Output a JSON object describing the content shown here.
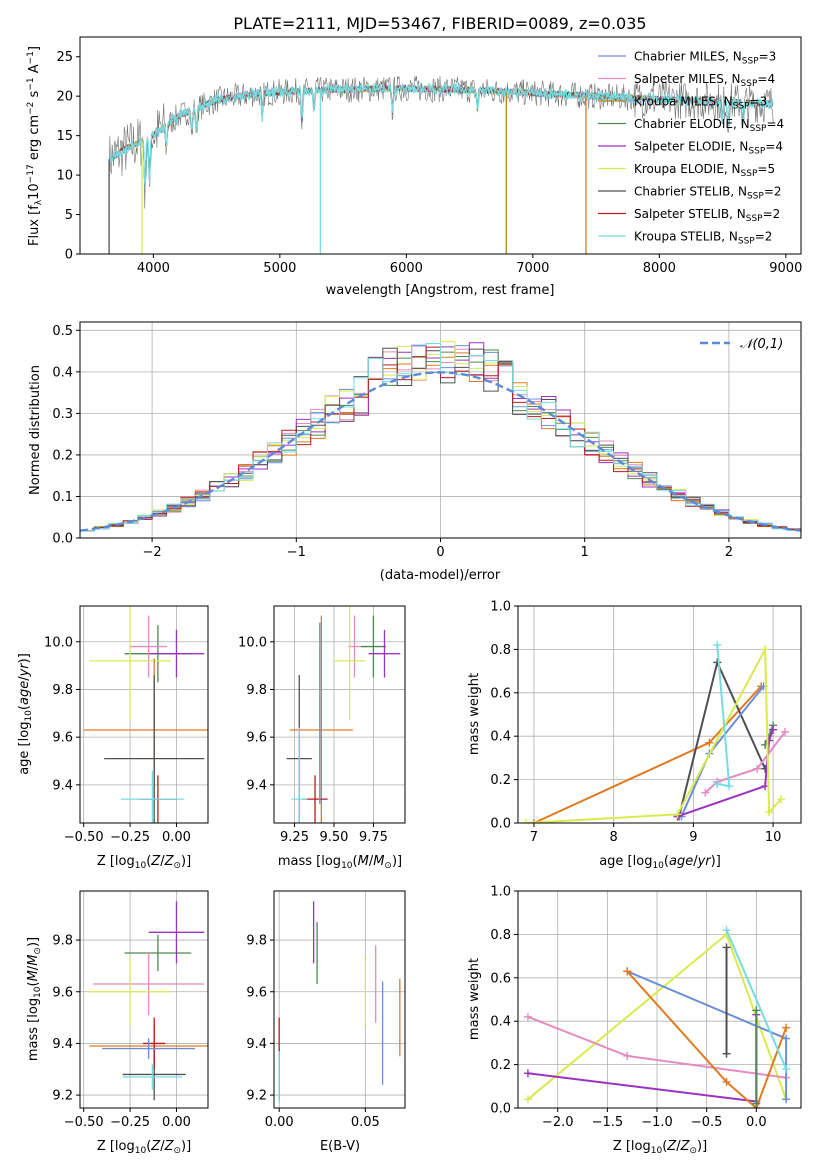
{
  "figure": {
    "title": "PLATE=2111, MJD=53467, FIBERID=0089, z=0.035"
  },
  "colors": {
    "Chabrier MILES": "#6a8fd8",
    "Salpeter MILES": "#e58bbd",
    "Kroupa MILES": "#b8861b",
    "Chabrier ELODIE": "#4e8a52",
    "Salpeter ELODIE": "#9b33c0",
    "Kroupa ELODIE": "#d8ea4e",
    "Chabrier STELIB": "#505050",
    "Salpeter STELIB": "#b81c1c",
    "Kroupa STELIB": "#77dbe3",
    "orange": "#e07a21",
    "gaussian": "#5b8bd8",
    "grid": "#b0b0b0"
  },
  "chart_data": [
    {
      "id": "spectrum",
      "type": "line",
      "title": "PLATE=2111, MJD=53467, FIBERID=0089, z=0.035",
      "xlabel": "wavelength [Angstrom, rest frame]",
      "ylabel_parts": [
        "Flux [f",
        "λ",
        "10",
        "−17",
        " erg cm",
        "−2",
        " s",
        "−1",
        " A",
        "−1",
        "]"
      ],
      "xlim": [
        3420,
        9120
      ],
      "ylim": [
        0,
        27.5
      ],
      "xticks": [
        4000,
        5000,
        6000,
        7000,
        8000,
        9000
      ],
      "yticks": [
        0,
        5,
        10,
        15,
        20,
        25
      ],
      "legend_position": "upper-right",
      "series": [
        {
          "name": "Chabrier MILES, N_SSP=3",
          "label_main": "Chabrier MILES, N",
          "label_sub": "SSP",
          "label_end": "=3",
          "color": "#6a8fd8"
        },
        {
          "name": "Salpeter MILES, N_SSP=4",
          "label_main": "Salpeter MILES, N",
          "label_sub": "SSP",
          "label_end": "=4",
          "color": "#e58bbd"
        },
        {
          "name": "Kroupa MILES, N_SSP=3",
          "label_main": "Kroupa MILES, N",
          "label_sub": "SSP",
          "label_end": "=3",
          "color": "#b8861b"
        },
        {
          "name": "Chabrier ELODIE, N_SSP=4",
          "label_main": "Chabrier ELODIE, N",
          "label_sub": "SSP",
          "label_end": "=4",
          "color": "#4e8a52"
        },
        {
          "name": "Salpeter ELODIE, N_SSP=4",
          "label_main": "Salpeter ELODIE, N",
          "label_sub": "SSP",
          "label_end": "=4",
          "color": "#9b33c0"
        },
        {
          "name": "Kroupa ELODIE, N_SSP=5",
          "label_main": "Kroupa ELODIE, N",
          "label_sub": "SSP",
          "label_end": "=5",
          "color": "#d8ea4e"
        },
        {
          "name": "Chabrier STELIB, N_SSP=2",
          "label_main": "Chabrier STELIB, N",
          "label_sub": "SSP",
          "label_end": "=2",
          "color": "#505050"
        },
        {
          "name": "Salpeter STELIB, N_SSP=2",
          "label_main": "Salpeter STELIB, N",
          "label_sub": "SSP",
          "label_end": "=2",
          "color": "#b81c1c"
        },
        {
          "name": "Kroupa STELIB, N_SSP=2",
          "label_main": "Kroupa STELIB, N",
          "label_sub": "SSP",
          "label_end": "=2",
          "color": "#77dbe3"
        }
      ],
      "continuum_knots": [
        [
          3650,
          12
        ],
        [
          3800,
          13.5
        ],
        [
          4000,
          15
        ],
        [
          4200,
          17.5
        ],
        [
          4500,
          19.5
        ],
        [
          4800,
          20.3
        ],
        [
          5100,
          20.6
        ],
        [
          5400,
          20.8
        ],
        [
          6000,
          21
        ],
        [
          6500,
          20.8
        ],
        [
          7000,
          20.4
        ],
        [
          7500,
          20
        ],
        [
          8000,
          19.6
        ],
        [
          8500,
          19.3
        ],
        [
          8900,
          19
        ]
      ],
      "absorption_lines": [
        [
          3934,
          7
        ],
        [
          3969,
          6
        ],
        [
          4102,
          3
        ],
        [
          4304,
          3
        ],
        [
          4340,
          3
        ],
        [
          4861,
          3
        ],
        [
          5175,
          4
        ],
        [
          5270,
          2.5
        ],
        [
          5890,
          3
        ],
        [
          6563,
          2.5
        ],
        [
          8498,
          2.5
        ],
        [
          8542,
          3
        ],
        [
          8662,
          3
        ]
      ],
      "drops": [
        {
          "x": 3910,
          "color": "#d8ea4e"
        },
        {
          "x": 5320,
          "color": "#77dbe3"
        },
        {
          "x": 6790,
          "color": "#b8861b"
        },
        {
          "x": 7420,
          "color": "#e07a21"
        },
        {
          "x": 3650,
          "color": "#505050"
        }
      ]
    },
    {
      "id": "residuals",
      "type": "histogram",
      "xlabel": "(data-model)/error",
      "ylabel": "Normed distribution",
      "xlim": [
        -2.5,
        2.5
      ],
      "ylim": [
        0,
        0.52
      ],
      "xticks": [
        -2,
        -1,
        0,
        1,
        2
      ],
      "xtick_labels": [
        "−2",
        "−1",
        "0",
        "1",
        "2"
      ],
      "yticks": [
        0,
        0.1,
        0.2,
        0.3,
        0.4,
        0.5
      ],
      "ytick_labels": [
        "0.0",
        "0.1",
        "0.2",
        "0.3",
        "0.4",
        "0.5"
      ],
      "bin_width": 0.1,
      "legend_position": "upper-right",
      "gaussian": {
        "label": "𝒩(0,1)",
        "mean": 0,
        "sigma": 1,
        "color": "#5b8bd8"
      },
      "series_colors": [
        "#6a8fd8",
        "#e58bbd",
        "#e07a21",
        "#4e8a52",
        "#9b33c0",
        "#d8ea4e",
        "#505050",
        "#b81c1c",
        "#77dbe3"
      ]
    },
    {
      "id": "age-vs-Z",
      "type": "scatter-errorbar",
      "xlabel_main": "Z [log",
      "xlabel_sub": "10",
      "xlabel_end": "(Z/Z",
      "xlabel_full": "Z [log10(Z/Z☉)]",
      "ylabel_full": "age  [log10(age/yr)]",
      "xlim": [
        -0.52,
        0.17
      ],
      "ylim": [
        9.24,
        10.15
      ],
      "xticks": [
        -0.5,
        -0.25,
        0.0
      ],
      "xtick_labels": [
        "−0.50",
        "−0.25",
        "0.00"
      ],
      "yticks": [
        9.4,
        9.6,
        9.8,
        10.0
      ],
      "ytick_labels": [
        "9.4",
        "9.6",
        "9.8",
        "10.0"
      ],
      "points": [
        {
          "x": -0.1,
          "y": 9.95,
          "xerr": 0.18,
          "yerr": 0.12,
          "color": "#4e8a52"
        },
        {
          "x": 0.0,
          "y": 9.95,
          "xerr": 0.15,
          "yerr": 0.1,
          "color": "#9b33c0"
        },
        {
          "x": -0.15,
          "y": 9.98,
          "xerr": 0.1,
          "yerr": 0.13,
          "color": "#e58bbd"
        },
        {
          "x": -0.25,
          "y": 9.92,
          "xerr": 0.22,
          "yerr": 0.25,
          "color": "#d8ea4e"
        },
        {
          "x": -0.12,
          "y": 9.63,
          "xerr": 0.38,
          "yerr": 0.3,
          "color": "#e07a21"
        },
        {
          "x": -0.12,
          "y": 9.51,
          "xerr": 0.27,
          "yerr": 0.35,
          "color": "#505050"
        },
        {
          "x": -0.1,
          "y": 9.34,
          "xerr": 0.1,
          "yerr": 0.1,
          "color": "#b81c1c"
        },
        {
          "x": -0.13,
          "y": 9.34,
          "xerr": 0.17,
          "yerr": 0.12,
          "color": "#77dbe3"
        }
      ]
    },
    {
      "id": "age-vs-mass",
      "type": "scatter-errorbar",
      "xlabel_full": "mass [log10(M/M☉)]",
      "xlim": [
        9.12,
        9.95
      ],
      "ylim": [
        9.24,
        10.15
      ],
      "xticks": [
        9.25,
        9.5,
        9.75
      ],
      "xtick_labels": [
        "9.25",
        "9.50",
        "9.75"
      ],
      "yticks": [
        9.4,
        9.6,
        9.8,
        10.0
      ],
      "ytick_labels": [
        "9.4",
        "9.6",
        "9.8",
        "10.0"
      ],
      "points": [
        {
          "x": 9.75,
          "y": 9.98,
          "xerr": 0.08,
          "yerr": 0.13,
          "color": "#4e8a52"
        },
        {
          "x": 9.82,
          "y": 9.95,
          "xerr": 0.1,
          "yerr": 0.1,
          "color": "#9b33c0"
        },
        {
          "x": 9.63,
          "y": 9.98,
          "xerr": 0.04,
          "yerr": 0.13,
          "color": "#e58bbd"
        },
        {
          "x": 9.6,
          "y": 9.92,
          "xerr": 0.1,
          "yerr": 0.25,
          "color": "#d8ea4e"
        },
        {
          "x": 9.42,
          "y": 9.63,
          "xerr": 0.2,
          "yerr": 0.48,
          "color": "#e07a21"
        },
        {
          "x": 9.28,
          "y": 9.51,
          "xerr": 0.08,
          "yerr": 0.35,
          "color": "#505050"
        },
        {
          "x": 9.38,
          "y": 9.34,
          "xerr": 0.08,
          "yerr": 0.1,
          "color": "#b81c1c"
        },
        {
          "x": 9.28,
          "y": 9.34,
          "xerr": 0.05,
          "yerr": 0.3,
          "color": "#77dbe3"
        },
        {
          "x": 9.41,
          "y": 9.7,
          "xerr": 0.0,
          "yerr": 0.38,
          "color": "#6a8fd8"
        }
      ]
    },
    {
      "id": "weight-vs-age",
      "type": "line",
      "xlabel_full": "age  [log10(age/yr)]",
      "ylabel": "mass weight",
      "xlim": [
        6.8,
        10.35
      ],
      "ylim": [
        0,
        1.0
      ],
      "xticks": [
        7,
        8,
        9,
        10
      ],
      "xtick_labels": [
        "7",
        "8",
        "9",
        "10"
      ],
      "yticks": [
        0,
        0.2,
        0.4,
        0.6,
        0.8,
        1.0
      ],
      "ytick_labels": [
        "0.0",
        "0.2",
        "0.4",
        "0.6",
        "0.8",
        "1.0"
      ],
      "series": [
        {
          "color": "#e07a21",
          "points": [
            [
              7.0,
              0.0
            ],
            [
              9.2,
              0.37
            ],
            [
              9.85,
              0.63
            ]
          ]
        },
        {
          "color": "#505050",
          "points": [
            [
              8.82,
              0.03
            ],
            [
              9.3,
              0.74
            ],
            [
              9.9,
              0.25
            ]
          ]
        },
        {
          "color": "#6a8fd8",
          "points": [
            [
              8.85,
              0.03
            ],
            [
              9.2,
              0.32
            ],
            [
              9.88,
              0.63
            ]
          ]
        },
        {
          "color": "#e58bbd",
          "points": [
            [
              9.15,
              0.14
            ],
            [
              9.3,
              0.19
            ],
            [
              9.8,
              0.25
            ],
            [
              10.15,
              0.42
            ]
          ]
        },
        {
          "color": "#4e8a52",
          "points": [
            [
              9.9,
              0.36
            ],
            [
              10.0,
              0.45
            ]
          ]
        },
        {
          "color": "#9b33c0",
          "points": [
            [
              8.8,
              0.03
            ],
            [
              9.9,
              0.17
            ],
            [
              9.95,
              0.38
            ],
            [
              10.0,
              0.43
            ]
          ]
        },
        {
          "color": "#d8ea4e",
          "points": [
            [
              6.9,
              0.0
            ],
            [
              8.8,
              0.04
            ],
            [
              9.9,
              0.8
            ],
            [
              9.95,
              0.05
            ],
            [
              10.1,
              0.11
            ]
          ]
        },
        {
          "color": "#77dbe3",
          "points": [
            [
              9.3,
              0.82
            ],
            [
              9.45,
              0.17
            ],
            [
              9.3,
              0.18
            ]
          ]
        }
      ]
    },
    {
      "id": "mass-vs-Z",
      "type": "scatter-errorbar",
      "xlabel_full": "Z [log10(Z/Z☉)]",
      "ylabel_full": "mass [log10(M/M☉)]",
      "xlim": [
        -0.52,
        0.17
      ],
      "ylim": [
        9.15,
        9.99
      ],
      "xticks": [
        -0.5,
        -0.25,
        0.0
      ],
      "xtick_labels": [
        "−0.50",
        "−0.25",
        "0.00"
      ],
      "yticks": [
        9.2,
        9.4,
        9.6,
        9.8
      ],
      "ytick_labels": [
        "9.2",
        "9.4",
        "9.6",
        "9.8"
      ],
      "points": [
        {
          "x": -0.1,
          "y": 9.75,
          "xerr": 0.18,
          "yerr": 0.07,
          "color": "#4e8a52"
        },
        {
          "x": 0.0,
          "y": 9.83,
          "xerr": 0.15,
          "yerr": 0.12,
          "color": "#9b33c0"
        },
        {
          "x": -0.15,
          "y": 9.63,
          "xerr": 0.3,
          "yerr": 0.12,
          "color": "#e58bbd"
        },
        {
          "x": -0.25,
          "y": 9.6,
          "xerr": 0.22,
          "yerr": 0.13,
          "color": "#d8ea4e"
        },
        {
          "x": -0.12,
          "y": 9.39,
          "xerr": 0.35,
          "yerr": 0.08,
          "color": "#e07a21"
        },
        {
          "x": -0.12,
          "y": 9.28,
          "xerr": 0.17,
          "yerr": 0.1,
          "color": "#505050"
        },
        {
          "x": -0.12,
          "y": 9.4,
          "xerr": 0.06,
          "yerr": 0.1,
          "color": "#b81c1c"
        },
        {
          "x": -0.13,
          "y": 9.27,
          "xerr": 0.16,
          "yerr": 0.05,
          "color": "#77dbe3"
        },
        {
          "x": -0.15,
          "y": 9.38,
          "xerr": 0.25,
          "yerr": 0.04,
          "color": "#6a8fd8"
        }
      ]
    },
    {
      "id": "mass-vs-EBV",
      "type": "scatter-errorbar",
      "xlabel": "E(B-V)",
      "xlim": [
        -0.003,
        0.073
      ],
      "ylim": [
        9.15,
        9.99
      ],
      "xticks": [
        0.0,
        0.05
      ],
      "xtick_labels": [
        "0.00",
        "0.05"
      ],
      "yticks": [
        9.2,
        9.4,
        9.6,
        9.8
      ],
      "ytick_labels": [
        "9.2",
        "9.4",
        "9.6",
        "9.8"
      ],
      "points": [
        {
          "x": 0.02,
          "y": 9.83,
          "xerr": 0,
          "yerr": 0.12,
          "color": "#9b33c0"
        },
        {
          "x": 0.022,
          "y": 9.75,
          "xerr": 0,
          "yerr": 0.12,
          "color": "#4e8a52"
        },
        {
          "x": 0.05,
          "y": 9.6,
          "xerr": 0,
          "yerr": 0.13,
          "color": "#d8ea4e"
        },
        {
          "x": 0.056,
          "y": 9.63,
          "xerr": 0,
          "yerr": 0.15,
          "color": "#e58bbd"
        },
        {
          "x": 0.06,
          "y": 9.44,
          "xerr": 0,
          "yerr": 0.2,
          "color": "#6a8fd8"
        },
        {
          "x": 0.07,
          "y": 9.5,
          "xerr": 0,
          "yerr": 0.15,
          "color": "#e07a21"
        },
        {
          "x": 0.0,
          "y": 9.4,
          "xerr": 0,
          "yerr": 0.1,
          "color": "#b81c1c"
        },
        {
          "x": 0.0,
          "y": 9.28,
          "xerr": 0,
          "yerr": 0.1,
          "color": "#505050"
        },
        {
          "x": 0.0,
          "y": 9.27,
          "xerr": 0,
          "yerr": 0.1,
          "color": "#77dbe3"
        }
      ]
    },
    {
      "id": "weight-vs-Z",
      "type": "line",
      "xlabel_full": "Z [log10(Z/Z☉)]",
      "ylabel": "mass weight",
      "xlim": [
        -2.4,
        0.45
      ],
      "ylim": [
        0,
        1.0
      ],
      "xticks": [
        -2.0,
        -1.5,
        -1.0,
        -0.5,
        0.0
      ],
      "xtick_labels": [
        "−2.0",
        "−1.5",
        "−1.0",
        "−0.5",
        "0.0"
      ],
      "yticks": [
        0,
        0.2,
        0.4,
        0.6,
        0.8,
        1.0
      ],
      "ytick_labels": [
        "0.0",
        "0.2",
        "0.4",
        "0.6",
        "0.8",
        "1.0"
      ],
      "series": [
        {
          "color": "#d8ea4e",
          "points": [
            [
              -2.3,
              0.04
            ],
            [
              -0.3,
              0.8
            ],
            [
              0.3,
              0.04
            ]
          ]
        },
        {
          "color": "#e58bbd",
          "points": [
            [
              -2.3,
              0.42
            ],
            [
              -1.3,
              0.24
            ],
            [
              0.3,
              0.14
            ]
          ]
        },
        {
          "color": "#9b33c0",
          "points": [
            [
              -2.3,
              0.16
            ],
            [
              0.0,
              0.03
            ],
            [
              0.0,
              0.43
            ]
          ]
        },
        {
          "color": "#6a8fd8",
          "points": [
            [
              -1.3,
              0.63
            ],
            [
              0.3,
              0.32
            ],
            [
              0.3,
              0.04
            ]
          ]
        },
        {
          "color": "#e07a21",
          "points": [
            [
              -1.3,
              0.63
            ],
            [
              -0.3,
              0.12
            ],
            [
              0.0,
              0.0
            ],
            [
              0.3,
              0.37
            ]
          ]
        },
        {
          "color": "#505050",
          "points": [
            [
              -0.3,
              0.74
            ],
            [
              -0.3,
              0.25
            ]
          ]
        },
        {
          "color": "#4e8a52",
          "points": [
            [
              0.0,
              0.45
            ],
            [
              0.0,
              0.02
            ]
          ]
        },
        {
          "color": "#77dbe3",
          "points": [
            [
              -0.3,
              0.82
            ],
            [
              0.3,
              0.18
            ]
          ]
        }
      ]
    }
  ]
}
